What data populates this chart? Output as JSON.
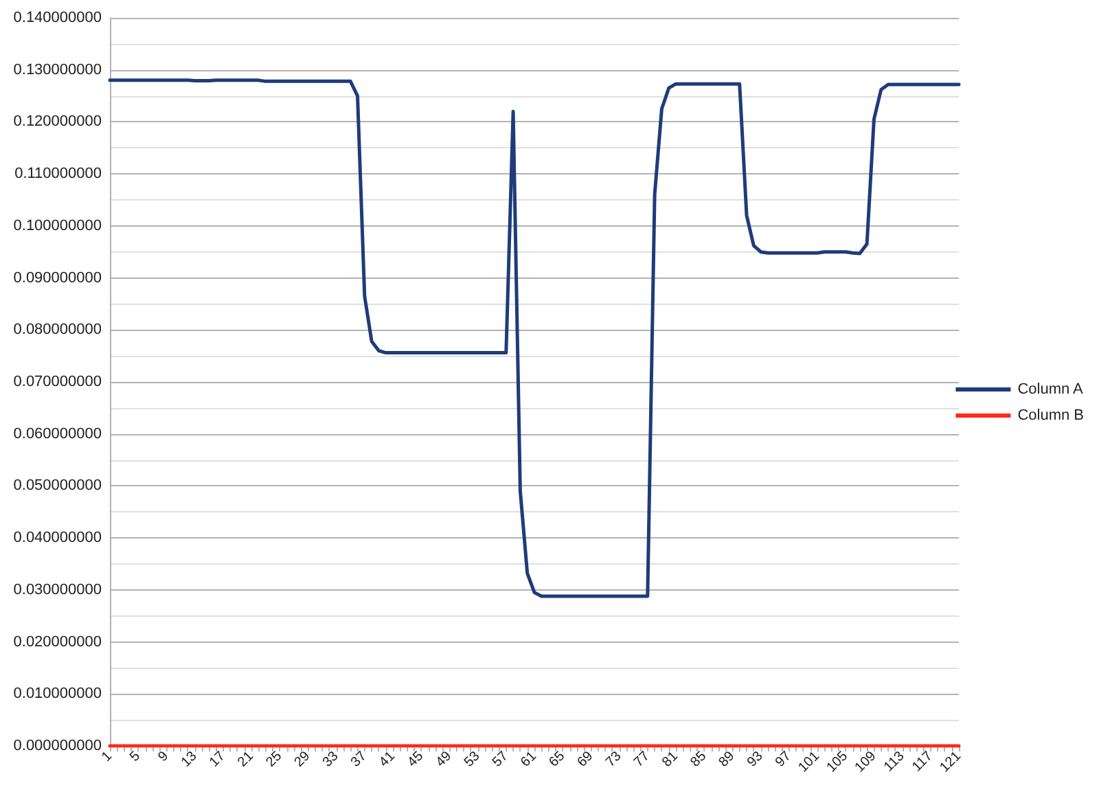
{
  "chart_data": {
    "type": "line",
    "categories": [
      "1",
      null,
      null,
      null,
      "5",
      null,
      null,
      null,
      "9",
      null,
      null,
      null,
      "13",
      null,
      null,
      null,
      "17",
      null,
      null,
      null,
      "21",
      null,
      null,
      null,
      "25",
      null,
      null,
      null,
      "29",
      null,
      null,
      null,
      "33",
      null,
      null,
      null,
      "37",
      null,
      null,
      null,
      "41",
      null,
      null,
      null,
      "45",
      null,
      null,
      null,
      "49",
      null,
      null,
      null,
      "53",
      null,
      null,
      null,
      "57",
      null,
      null,
      null,
      "61",
      null,
      null,
      null,
      "65",
      null,
      null,
      null,
      "69",
      null,
      null,
      null,
      "73",
      null,
      null,
      null,
      "77",
      null,
      null,
      null,
      "81",
      null,
      null,
      null,
      "85",
      null,
      null,
      null,
      "89",
      null,
      null,
      null,
      "93",
      null,
      null,
      null,
      "97",
      null,
      null,
      null,
      "101",
      null,
      null,
      null,
      "105",
      null,
      null,
      null,
      "109",
      null,
      null,
      null,
      "113",
      null,
      null,
      null,
      "117",
      null,
      null,
      null,
      "121"
    ],
    "series": [
      {
        "name": "Column A",
        "color": "#1f3b7a",
        "values": [
          0.128,
          0.128,
          0.128,
          0.128,
          0.128,
          0.128,
          0.128,
          0.128,
          0.128,
          0.128,
          0.128,
          0.128,
          0.1279,
          0.1279,
          0.1279,
          0.128,
          0.128,
          0.128,
          0.128,
          0.128,
          0.128,
          0.128,
          0.1278,
          0.1278,
          0.1278,
          0.1278,
          0.1278,
          0.1278,
          0.1278,
          0.1278,
          0.1278,
          0.1278,
          0.1278,
          0.1278,
          0.1278,
          0.125,
          0.0865,
          0.0778,
          0.076,
          0.0756,
          0.0756,
          0.0756,
          0.0756,
          0.0756,
          0.0756,
          0.0756,
          0.0756,
          0.0756,
          0.0756,
          0.0756,
          0.0756,
          0.0756,
          0.0756,
          0.0756,
          0.0756,
          0.0756,
          0.0756,
          0.122,
          0.049,
          0.0332,
          0.0295,
          0.0288,
          0.0288,
          0.0288,
          0.0288,
          0.0288,
          0.0288,
          0.0288,
          0.0288,
          0.0288,
          0.0288,
          0.0288,
          0.0288,
          0.0288,
          0.0288,
          0.0288,
          0.0288,
          0.106,
          0.1225,
          0.1265,
          0.1273,
          0.1273,
          0.1273,
          0.1273,
          0.1273,
          0.1273,
          0.1273,
          0.1273,
          0.1273,
          0.1273,
          0.102,
          0.0962,
          0.095,
          0.0948,
          0.0948,
          0.0948,
          0.0948,
          0.0948,
          0.0948,
          0.0948,
          0.0948,
          0.095,
          0.095,
          0.095,
          0.095,
          0.0948,
          0.0947,
          0.0965,
          0.1205,
          0.1262,
          0.1272,
          0.1272,
          0.1272,
          0.1272,
          0.1272,
          0.1272,
          0.1272,
          0.1272,
          0.1272,
          0.1272,
          0.1272
        ]
      },
      {
        "name": "Column B",
        "color": "#ff2a1a",
        "values": [
          0,
          0,
          0,
          0,
          0,
          0,
          0,
          0,
          0,
          0,
          0,
          0,
          0,
          0,
          0,
          0,
          0,
          0,
          0,
          0,
          0,
          0,
          0,
          0,
          0,
          0,
          0,
          0,
          0,
          0,
          0,
          0,
          0,
          0,
          0,
          0,
          0,
          0,
          0,
          0,
          0,
          0,
          0,
          0,
          0,
          0,
          0,
          0,
          0,
          0,
          0,
          0,
          0,
          0,
          0,
          0,
          0,
          0,
          0,
          0,
          0,
          0,
          0,
          0,
          0,
          0,
          0,
          0,
          0,
          0,
          0,
          0,
          0,
          0,
          0,
          0,
          0,
          0,
          0,
          0,
          0,
          0,
          0,
          0,
          0,
          0,
          0,
          0,
          0,
          0,
          0,
          0,
          0,
          0,
          0,
          0,
          0,
          0,
          0,
          0,
          0,
          0,
          0,
          0,
          0,
          0,
          0,
          0,
          0,
          0,
          0,
          0,
          0,
          0,
          0,
          0,
          0,
          0,
          0,
          0,
          0
        ]
      }
    ],
    "ylim": [
      0,
      0.14
    ],
    "yticks": [
      {
        "value": 0,
        "label": "0.000000000"
      },
      {
        "value": 0.01,
        "label": "0.010000000"
      },
      {
        "value": 0.02,
        "label": "0.020000000"
      },
      {
        "value": 0.03,
        "label": "0.030000000"
      },
      {
        "value": 0.04,
        "label": "0.040000000"
      },
      {
        "value": 0.05,
        "label": "0.050000000"
      },
      {
        "value": 0.06,
        "label": "0.060000000"
      },
      {
        "value": 0.07,
        "label": "0.070000000"
      },
      {
        "value": 0.08,
        "label": "0.080000000"
      },
      {
        "value": 0.09,
        "label": "0.090000000"
      },
      {
        "value": 0.1,
        "label": "0.100000000"
      },
      {
        "value": 0.11,
        "label": "0.110000000"
      },
      {
        "value": 0.12,
        "label": "0.120000000"
      },
      {
        "value": 0.13,
        "label": "0.130000000"
      },
      {
        "value": 0.14,
        "label": "0.140000000"
      }
    ],
    "grid": "y",
    "legend": "right",
    "marker": "none",
    "line_style": "solid"
  }
}
